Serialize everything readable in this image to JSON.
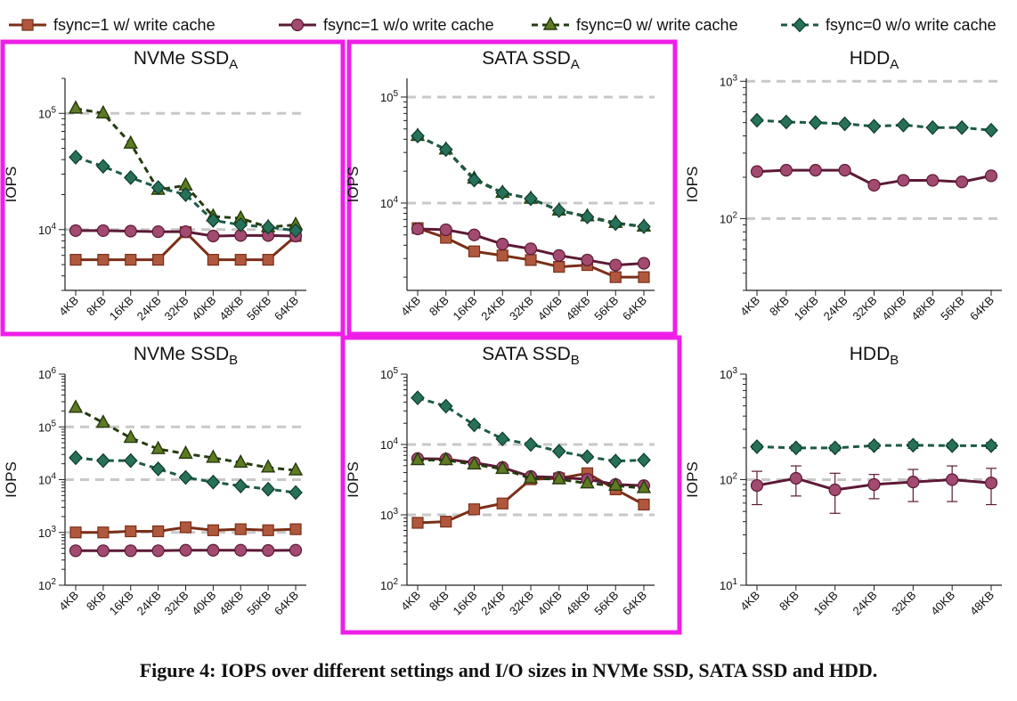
{
  "caption": "Figure 4: IOPS over different settings and I/O sizes in NVMe SSD, SATA SSD and HDD.",
  "colors": {
    "highlight": "#ee1ee8",
    "reference": "#c8c8c8"
  },
  "legend": [
    "fsync=1 w/ write cache",
    "fsync=1 w/o write cache",
    "fsync=0 w/ write cache",
    "fsync=0 w/o write cache"
  ],
  "chart_data": [
    {
      "type": "line",
      "title": "NVMe SSD",
      "title_sub": "A",
      "ylabel": "IOPS",
      "yscale": "log",
      "ylim": [
        3000,
        200000
      ],
      "yticks": [
        10000,
        100000
      ],
      "yticklabels": [
        [
          "10",
          "4"
        ],
        [
          "10",
          "5"
        ]
      ],
      "reference_lines": [
        10000,
        100000
      ],
      "highlighted": true,
      "categories": [
        "4KB",
        "8KB",
        "16KB",
        "24KB",
        "32KB",
        "40KB",
        "48KB",
        "56KB",
        "64KB"
      ],
      "series": [
        {
          "name": "fsync=1 w/ write cache",
          "values": [
            5500,
            5500,
            5500,
            5500,
            9500,
            5500,
            5500,
            5500,
            8800
          ]
        },
        {
          "name": "fsync=1 w/o write cache",
          "values": [
            9800,
            9800,
            9700,
            9600,
            9600,
            8800,
            8900,
            8900,
            8800
          ]
        },
        {
          "name": "fsync=0 w/ write cache",
          "values": [
            110000,
            100000,
            55000,
            22000,
            24000,
            13000,
            12500,
            10500,
            11000
          ]
        },
        {
          "name": "fsync=0 w/o write cache",
          "values": [
            42000,
            35000,
            28000,
            23000,
            20000,
            12000,
            11000,
            10500,
            9800
          ]
        }
      ]
    },
    {
      "type": "line",
      "title": "SATA SSD",
      "title_sub": "A",
      "ylabel": "IOPS",
      "yscale": "log",
      "ylim": [
        1500,
        150000
      ],
      "yticks": [
        10000,
        100000
      ],
      "yticklabels": [
        [
          "10",
          "4"
        ],
        [
          "10",
          "5"
        ]
      ],
      "reference_lines": [
        10000,
        100000
      ],
      "highlighted": true,
      "categories": [
        "4KB",
        "8KB",
        "16KB",
        "24KB",
        "32KB",
        "40KB",
        "48KB",
        "56KB",
        "64KB"
      ],
      "series": [
        {
          "name": "fsync=1 w/ write cache",
          "values": [
            5800,
            4700,
            3500,
            3200,
            2900,
            2500,
            2600,
            2000,
            2000
          ]
        },
        {
          "name": "fsync=1 w/o write cache",
          "values": [
            5700,
            5600,
            5000,
            4100,
            3700,
            3200,
            2900,
            2600,
            2700
          ]
        },
        {
          "name": "fsync=0 w/ write cache",
          "values": [
            43000,
            32000,
            17000,
            12500,
            11000,
            8500,
            7500,
            6500,
            6000
          ]
        },
        {
          "name": "fsync=0 w/o write cache",
          "values": [
            43000,
            32000,
            16500,
            12500,
            11000,
            8500,
            7400,
            6400,
            6000
          ]
        }
      ]
    },
    {
      "type": "line",
      "title": "HDD",
      "title_sub": "A",
      "ylabel": "IOPS",
      "yscale": "log",
      "ylim": [
        30,
        1050
      ],
      "yticks": [
        100,
        1000
      ],
      "yticklabels": [
        [
          "10",
          "2"
        ],
        [
          "10",
          "3"
        ]
      ],
      "reference_lines": [
        100,
        1000
      ],
      "highlighted": false,
      "categories": [
        "4KB",
        "8KB",
        "16KB",
        "24KB",
        "32KB",
        "40KB",
        "48KB",
        "56KB",
        "64KB"
      ],
      "series": [
        {
          "name": "fsync=1 w/o write cache",
          "values": [
            220,
            225,
            225,
            225,
            175,
            190,
            190,
            185,
            205
          ]
        },
        {
          "name": "fsync=0 w/o write cache",
          "values": [
            520,
            505,
            500,
            490,
            470,
            480,
            460,
            460,
            440
          ]
        }
      ]
    },
    {
      "type": "line",
      "title": "NVMe SSD",
      "title_sub": "B",
      "ylabel": "IOPS",
      "yscale": "log",
      "ylim": [
        100,
        1000000
      ],
      "yticks": [
        100,
        1000,
        10000,
        100000,
        1000000
      ],
      "yticklabels": [
        [
          "10",
          "2"
        ],
        [
          "10",
          "3"
        ],
        [
          "10",
          "4"
        ],
        [
          "10",
          "5"
        ],
        [
          "10",
          "6"
        ]
      ],
      "reference_lines": [
        1000,
        10000,
        100000
      ],
      "highlighted": false,
      "categories": [
        "4KB",
        "8KB",
        "16KB",
        "24KB",
        "32KB",
        "40KB",
        "48KB",
        "56KB",
        "64KB"
      ],
      "series": [
        {
          "name": "fsync=1 w/ write cache",
          "values": [
            1000,
            1000,
            1050,
            1050,
            1250,
            1100,
            1150,
            1100,
            1150
          ]
        },
        {
          "name": "fsync=1 w/o write cache",
          "values": [
            450,
            450,
            450,
            450,
            460,
            460,
            460,
            455,
            460
          ]
        },
        {
          "name": "fsync=0 w/ write cache",
          "values": [
            230000,
            120000,
            62000,
            38000,
            31000,
            26000,
            21000,
            17000,
            15000
          ]
        },
        {
          "name": "fsync=0 w/o write cache",
          "values": [
            26000,
            23000,
            23000,
            16000,
            11000,
            9000,
            7600,
            6600,
            5700
          ]
        }
      ]
    },
    {
      "type": "line",
      "title": "SATA SSD",
      "title_sub": "B",
      "ylabel": "IOPS",
      "yscale": "log",
      "ylim": [
        100,
        100000
      ],
      "yticks": [
        100,
        1000,
        10000,
        100000
      ],
      "yticklabels": [
        [
          "10",
          "2"
        ],
        [
          "10",
          "3"
        ],
        [
          "10",
          "4"
        ],
        [
          "10",
          "5"
        ]
      ],
      "reference_lines": [
        1000,
        10000
      ],
      "highlighted": true,
      "categories": [
        "4KB",
        "8KB",
        "16KB",
        "24KB",
        "32KB",
        "40KB",
        "48KB",
        "56KB",
        "64KB"
      ],
      "series": [
        {
          "name": "fsync=1 w/ write cache",
          "values": [
            770,
            800,
            1200,
            1450,
            3200,
            3300,
            3900,
            2300,
            1400
          ]
        },
        {
          "name": "fsync=1 w/o write cache",
          "values": [
            6300,
            6200,
            5500,
            4700,
            3500,
            3400,
            3200,
            2700,
            2600
          ]
        },
        {
          "name": "fsync=0 w/ write cache",
          "values": [
            6000,
            6000,
            5200,
            4500,
            3300,
            3200,
            2800,
            2600,
            2400
          ]
        },
        {
          "name": "fsync=0 w/o write cache",
          "values": [
            46000,
            35000,
            19000,
            12000,
            10000,
            8000,
            6700,
            5800,
            6000
          ]
        }
      ]
    },
    {
      "type": "line",
      "title": "HDD",
      "title_sub": "B",
      "ylabel": "IOPS",
      "yscale": "log",
      "ylim": [
        10,
        1000
      ],
      "yticks": [
        10,
        100,
        1000
      ],
      "yticklabels": [
        [
          "10",
          "1"
        ],
        [
          "10",
          "2"
        ],
        [
          "10",
          "3"
        ]
      ],
      "reference_lines": [
        100
      ],
      "highlighted": false,
      "categories": [
        "4KB",
        "8KB",
        "16KB",
        "24KB",
        "32KB",
        "40KB",
        "48KB"
      ],
      "series": [
        {
          "name": "fsync=1 w/o write cache",
          "values": [
            88,
            103,
            80,
            90,
            95,
            100,
            93
          ],
          "error_low": [
            58,
            70,
            48,
            66,
            62,
            62,
            58
          ],
          "error_high": [
            120,
            135,
            115,
            112,
            125,
            135,
            128
          ]
        },
        {
          "name": "fsync=0 w/o write cache",
          "values": [
            205,
            200,
            200,
            210,
            212,
            210,
            210
          ],
          "error_low": [
            195,
            188,
            188,
            198,
            198,
            200,
            198
          ],
          "error_high": [
            215,
            212,
            212,
            222,
            228,
            222,
            225
          ]
        }
      ]
    }
  ]
}
